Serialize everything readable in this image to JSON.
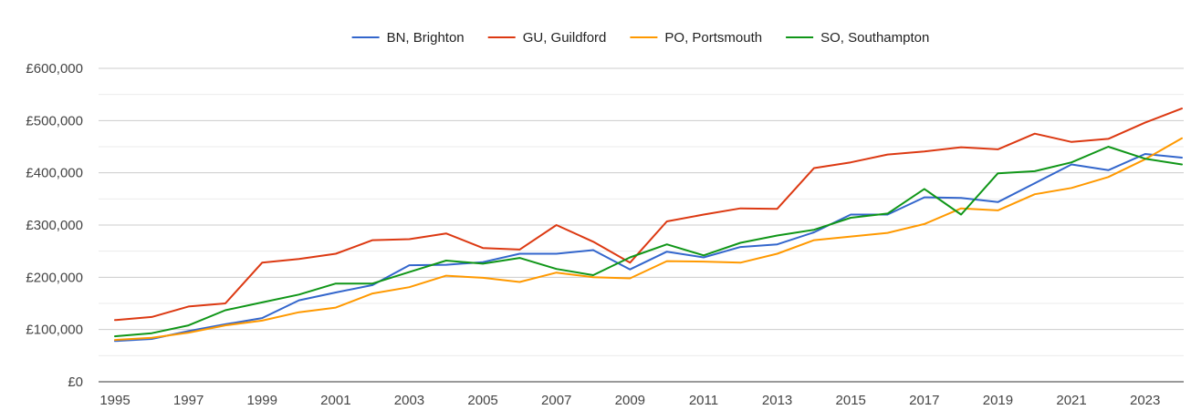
{
  "chart_data": {
    "type": "line",
    "title": "",
    "xlabel": "",
    "ylabel": "",
    "legend_position": "top-center",
    "grid": true,
    "ylim": [
      0,
      600000
    ],
    "yticks": [
      0,
      100000,
      200000,
      300000,
      400000,
      500000,
      600000
    ],
    "ytick_labels": [
      "£0",
      "£100,000",
      "£200,000",
      "£300,000",
      "£400,000",
      "£500,000",
      "£600,000"
    ],
    "xlim": [
      1995,
      2024
    ],
    "xticks": [
      1995,
      1997,
      1999,
      2001,
      2003,
      2005,
      2007,
      2009,
      2011,
      2013,
      2015,
      2017,
      2019,
      2021,
      2023
    ],
    "x": [
      1995,
      1996,
      1997,
      1998,
      1999,
      2000,
      2001,
      2002,
      2003,
      2004,
      2005,
      2006,
      2007,
      2008,
      2009,
      2010,
      2011,
      2012,
      2013,
      2014,
      2015,
      2016,
      2017,
      2018,
      2019,
      2020,
      2021,
      2022,
      2023,
      2024
    ],
    "series": [
      {
        "name": "BN, Brighton",
        "color": "#3366cc",
        "values": [
          78000,
          82000,
          97000,
          110000,
          122000,
          156000,
          171000,
          185000,
          223000,
          224000,
          229000,
          245000,
          245000,
          252000,
          215000,
          249000,
          238000,
          258000,
          263000,
          286000,
          320000,
          320000,
          353000,
          352000,
          344000,
          380000,
          416000,
          405000,
          436000,
          429000
        ]
      },
      {
        "name": "GU, Guildford",
        "color": "#dc3912",
        "values": [
          118000,
          124000,
          144000,
          150000,
          228000,
          235000,
          245000,
          271000,
          273000,
          284000,
          256000,
          253000,
          300000,
          268000,
          228000,
          307000,
          320000,
          332000,
          331000,
          409000,
          420000,
          435000,
          441000,
          449000,
          445000,
          475000,
          459000,
          465000,
          496000,
          523000
        ]
      },
      {
        "name": "PO, Portsmouth",
        "color": "#ff9900",
        "values": [
          80000,
          84000,
          94000,
          108000,
          117000,
          133000,
          142000,
          169000,
          181000,
          203000,
          199000,
          191000,
          209000,
          200000,
          198000,
          231000,
          230000,
          228000,
          245000,
          271000,
          278000,
          285000,
          302000,
          332000,
          328000,
          359000,
          371000,
          392000,
          426000,
          466000
        ]
      },
      {
        "name": "SO, Southampton",
        "color": "#109618",
        "values": [
          87000,
          93000,
          108000,
          137000,
          152000,
          167000,
          188000,
          188000,
          210000,
          232000,
          226000,
          237000,
          216000,
          204000,
          238000,
          263000,
          242000,
          266000,
          280000,
          291000,
          314000,
          322000,
          369000,
          320000,
          399000,
          403000,
          420000,
          450000,
          427000,
          416000
        ]
      }
    ]
  }
}
